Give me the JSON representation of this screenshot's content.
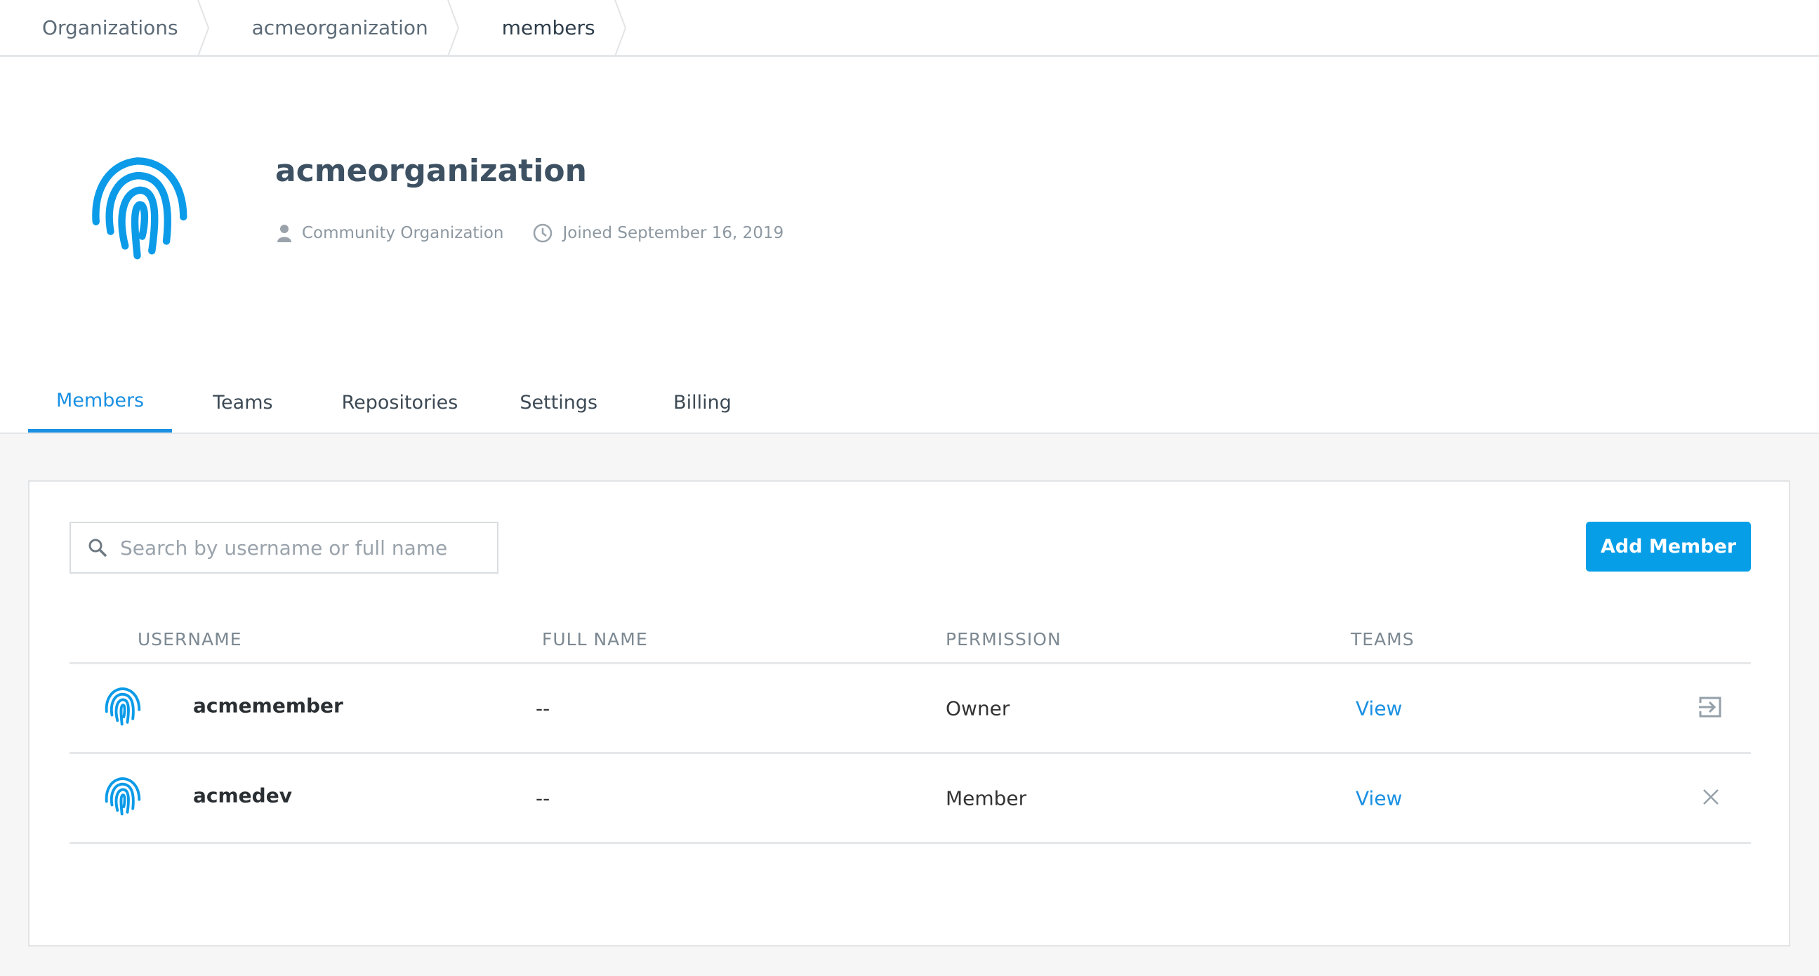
{
  "breadcrumb": [
    "Organizations",
    "acmeorganization",
    "members"
  ],
  "org": {
    "name": "acmeorganization",
    "type": "Community Organization",
    "joined": "Joined September 16, 2019"
  },
  "tabs": [
    "Members",
    "Teams",
    "Repositories",
    "Settings",
    "Billing"
  ],
  "active_tab": "Members",
  "search": {
    "placeholder": "Search by username or full name",
    "value": ""
  },
  "add_member_label": "Add Member",
  "table": {
    "headers": [
      "USERNAME",
      "FULL NAME",
      "PERMISSION",
      "TEAMS"
    ],
    "rows": [
      {
        "username": "acmemember",
        "full_name": "--",
        "permission": "Owner",
        "teams": "View",
        "action_icon": "leave-icon"
      },
      {
        "username": "acmedev",
        "full_name": "--",
        "permission": "Member",
        "teams": "View",
        "action_icon": "close-icon"
      }
    ]
  },
  "colors": {
    "accent": "#079ee8",
    "link": "#1a90e2"
  }
}
